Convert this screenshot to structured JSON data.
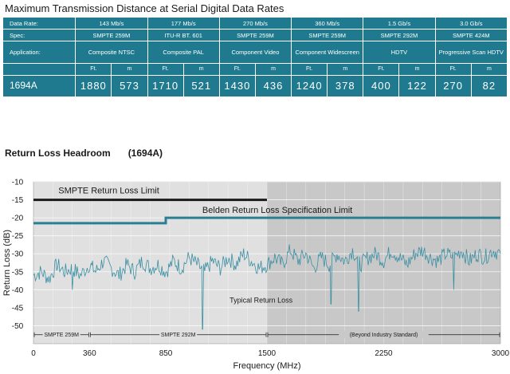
{
  "table": {
    "title": "Maximum Transmission Distance at Serial Digital Data Rates",
    "rows": {
      "data_rate": {
        "label": "Data Rate:",
        "values": [
          "143 Mb/s",
          "177 Mb/s",
          "270 Mb/s",
          "360 Mb/s",
          "1.5 Gb/s",
          "3.0 Gb/s"
        ]
      },
      "spec": {
        "label": "Spec:",
        "values": [
          "SMPTE 259M",
          "ITU-R BT. 601",
          "SMPTE 259M",
          "SMPTE 259M",
          "SMPTE 292M",
          "SMPTE 424M"
        ]
      },
      "application": {
        "label": "Application:",
        "values": [
          "Composite NTSC",
          "Composite PAL",
          "Component Video",
          "Component Widescreen",
          "HDTV",
          "Progressive Scan HDTV"
        ]
      },
      "units": {
        "ft": "Ft.",
        "m": "m"
      },
      "product": {
        "label": "1694A",
        "values": [
          {
            "ft": "1880",
            "m": "573"
          },
          {
            "ft": "1710",
            "m": "521"
          },
          {
            "ft": "1430",
            "m": "436"
          },
          {
            "ft": "1240",
            "m": "378"
          },
          {
            "ft": "400",
            "m": "122"
          },
          {
            "ft": "270",
            "m": "82"
          }
        ]
      }
    }
  },
  "chart_title": {
    "main": "Return Loss Headroom",
    "product": "(1694A)"
  },
  "chart_data": {
    "type": "line",
    "title": "Return Loss Headroom (1694A)",
    "xlabel": "Frequency (MHz)",
    "ylabel": "Return Loss (dB)",
    "xlim": [
      0,
      3000
    ],
    "ylim": [
      -55,
      -10
    ],
    "xticks": [
      "0",
      "360",
      "850",
      "1500",
      "2250",
      "3000"
    ],
    "xtick_values": [
      0,
      360,
      850,
      1500,
      2250,
      3000
    ],
    "yticks": [
      "-10",
      "-15",
      "-20",
      "-25",
      "-30",
      "-35",
      "-40",
      "-45",
      "-50"
    ],
    "ytick_values": [
      -10,
      -15,
      -20,
      -25,
      -30,
      -35,
      -40,
      -45,
      -50
    ],
    "grid": true,
    "regions": [
      {
        "label": "SMPTE 259M",
        "x": [
          0,
          360
        ],
        "shade": "#e0e0e0"
      },
      {
        "label": "SMPTE 292M",
        "x": [
          360,
          1500
        ],
        "shade": "#e0e0e0"
      },
      {
        "label": "(Beyond Industry Standard)",
        "x": [
          1500,
          3000
        ],
        "shade": "#c8c8c8"
      }
    ],
    "series": [
      {
        "name": "SMPTE Return Loss Limit",
        "color": "#1a1a1a",
        "x": [
          0,
          1500
        ],
        "y": [
          -15,
          -15
        ]
      },
      {
        "name": "Belden Return Loss Specification Limit",
        "color": "#2b7f93",
        "x": [
          0,
          850,
          850,
          3000
        ],
        "y": [
          -21.5,
          -21.5,
          -20,
          -20
        ]
      },
      {
        "name": "Typical Return Loss",
        "color": "#3a8fa3",
        "x": [
          0,
          50,
          100,
          150,
          200,
          250,
          300,
          360,
          400,
          450,
          500,
          550,
          600,
          650,
          700,
          750,
          800,
          850,
          900,
          950,
          1000,
          1050,
          1100,
          1150,
          1200,
          1250,
          1300,
          1350,
          1400,
          1450,
          1500,
          1550,
          1600,
          1650,
          1700,
          1750,
          1800,
          1850,
          1900,
          1950,
          2000,
          2050,
          2100,
          2150,
          2200,
          2250,
          2300,
          2350,
          2400,
          2450,
          2500,
          2550,
          2600,
          2650,
          2700,
          2750,
          2800,
          2850,
          2900,
          2950,
          3000
        ],
        "y": [
          -36,
          -35,
          -37,
          -33,
          -35,
          -34,
          -36,
          -33,
          -35,
          -32,
          -34,
          -36,
          -33,
          -35,
          -32,
          -34,
          -33,
          -35,
          -32,
          -34,
          -31,
          -33,
          -35,
          -32,
          -34,
          -31,
          -33,
          -30,
          -32,
          -34,
          -33,
          -31,
          -33,
          -29,
          -32,
          -30,
          -34,
          -31,
          -33,
          -30,
          -32,
          -29,
          -33,
          -31,
          -30,
          -32,
          -29,
          -31,
          -33,
          -30,
          -29,
          -31,
          -32,
          -30,
          -31,
          -29,
          -32,
          -30,
          -31,
          -29,
          -30
        ],
        "dips": [
          [
            1085,
            -51
          ],
          [
            1910,
            -44
          ],
          [
            2090,
            -46
          ],
          [
            250,
            -40
          ],
          [
            2700,
            -40
          ]
        ]
      }
    ],
    "annotations": [
      {
        "text": "SMPTE Return Loss   Limit",
        "x": 160,
        "y": -13.2
      },
      {
        "text": "Belden Return Loss Specification      Limit",
        "x": 1085,
        "y": -18.6
      },
      {
        "text": "Typical Return Loss",
        "x": 1260,
        "y": -43.6
      }
    ]
  }
}
